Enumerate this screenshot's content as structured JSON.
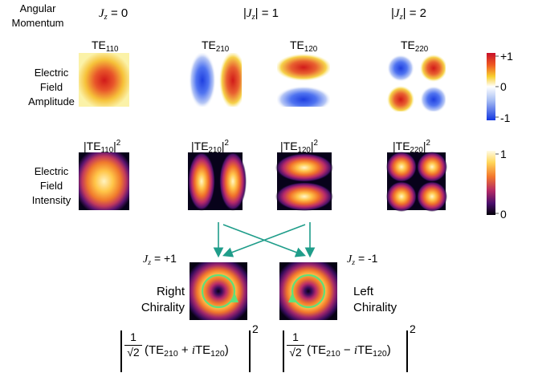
{
  "header": {
    "angular_momentum_line1": "Angular",
    "angular_momentum_line2": "Momentum",
    "jz0": "= 0",
    "jz1": "| = 1",
    "jz2": "| = 2"
  },
  "rows": {
    "amplitude": [
      "Electric",
      "Field",
      "Amplitude"
    ],
    "intensity": [
      "Electric",
      "Field",
      "Intensity"
    ]
  },
  "modes": {
    "te110": "110",
    "te210": "210",
    "te120": "120",
    "te220": "220",
    "te_prefix": "TE"
  },
  "colorbar_amplitude": {
    "top": "+1",
    "mid": "0",
    "bottom": "-1"
  },
  "colorbar_intensity": {
    "top": "1",
    "bottom": "0"
  },
  "chirality": {
    "right_jz": "= +1",
    "left_jz": "= -1",
    "right_line1": "Right",
    "right_line2": "Chirality",
    "left_line1": "Left",
    "left_line2": "Chirality"
  },
  "formula": {
    "one": "1",
    "sqrt2": "√2",
    "plus": "+",
    "minus": "−",
    "i": "i",
    "power": "2"
  },
  "colors": {
    "arrow": "#1f9d8a",
    "circle": "#5fe07a"
  }
}
